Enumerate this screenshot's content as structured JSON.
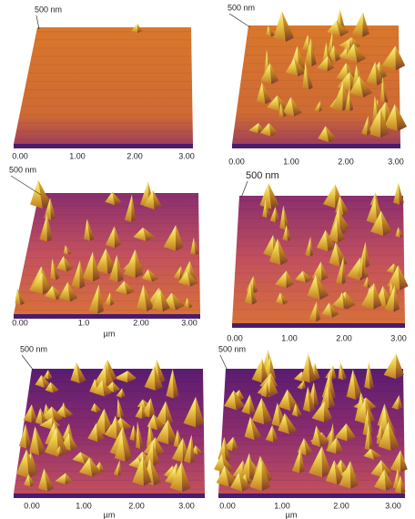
{
  "panels": [
    {
      "scale_label": "500 nm",
      "ticks": [
        "0.00",
        "1.00",
        "2.00",
        "3.00"
      ]
    },
    {
      "scale_label": "500 nm",
      "ticks": [
        "0.00",
        "1.00",
        "2.00",
        "3.00"
      ]
    },
    {
      "scale_label": "500 nm",
      "ticks": [
        "0.00",
        "1.0",
        "2.00",
        "3.00"
      ],
      "unit": "µm"
    },
    {
      "scale_label": "500 nm",
      "ticks": [
        "0.00",
        "1.00",
        "2.00",
        "3.00"
      ]
    },
    {
      "scale_label": "500 nm",
      "ticks": [
        "0.00",
        "1.00",
        "2.00",
        "3.00"
      ],
      "unit": "µm"
    },
    {
      "scale_label": "500 nm",
      "ticks": [
        "0.00",
        "1.00",
        "2.00",
        "3.00"
      ],
      "unit": "µm"
    }
  ]
}
